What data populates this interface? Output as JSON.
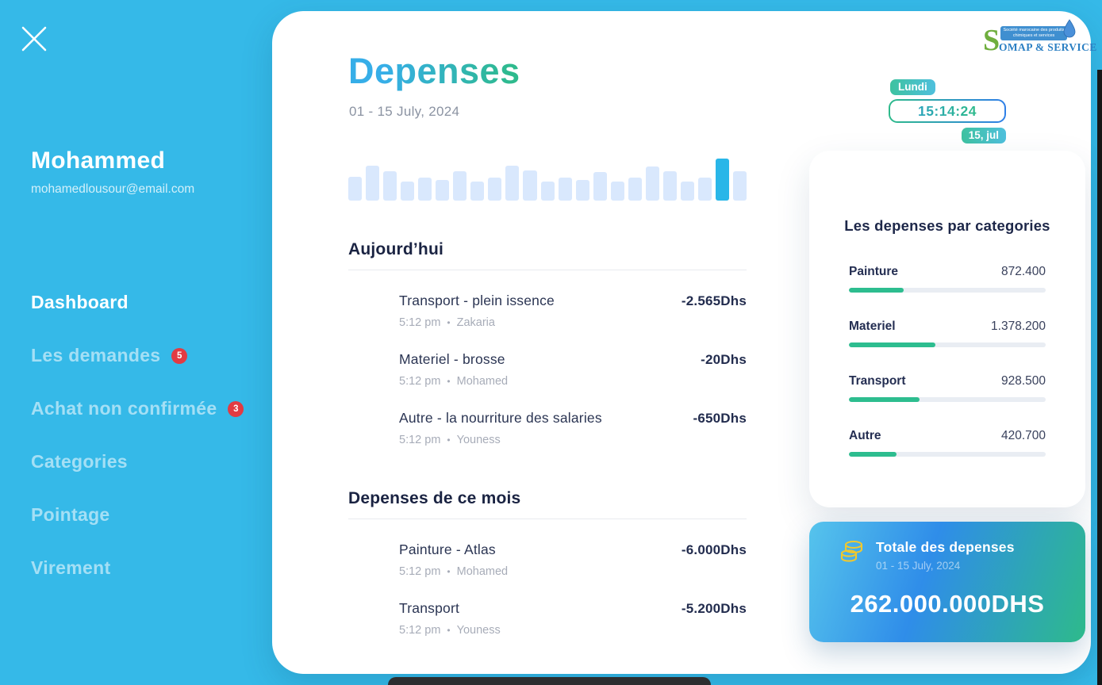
{
  "sidebar": {
    "close_icon": "close-icon",
    "user": {
      "name": "Mohammed",
      "email": "mohamedlousour@email.com"
    },
    "items": [
      {
        "label": "Dashboard",
        "active": true
      },
      {
        "label": "Les demandes",
        "badge": "5"
      },
      {
        "label": "Achat non confirmée",
        "badge": "3"
      },
      {
        "label": "Categories"
      },
      {
        "label": "Pointage"
      },
      {
        "label": "Virement"
      }
    ]
  },
  "header": {
    "title": "Depenses",
    "date_range": "01 - 15 July, 2024",
    "logo": {
      "brand_s": "S",
      "brand_rest": "OMAP & SERVICE",
      "tagline": "Société marocaine des produits chimiques et services",
      "drop_icon": "water-drop-icon"
    },
    "clock": {
      "day": "Lundi",
      "time": "15:14:24",
      "date": "15, jul"
    }
  },
  "chart_data": {
    "type": "bar",
    "title": "",
    "xlabel": "",
    "ylabel": "",
    "values": [
      56,
      83,
      70,
      45,
      55,
      49,
      70,
      45,
      55,
      83,
      72,
      45,
      55,
      49,
      68,
      45,
      55,
      81,
      70,
      45,
      55,
      100,
      70
    ],
    "ylim": [
      0,
      100
    ],
    "highlight_index": 21,
    "bar_color": "#d9e8fd",
    "highlight_color": "#29b6e8",
    "grid": false,
    "legend": "none",
    "note": "decorative daily-spending sparkline without axes or labels"
  },
  "sections": [
    {
      "title": "Aujourd’hui",
      "rows": [
        {
          "title": "Transport - plein issence",
          "amount": "-2.565Dhs",
          "time": "5:12 pm",
          "person": "Zakaria"
        },
        {
          "title": "Materiel - brosse",
          "amount": "-20Dhs",
          "time": "5:12 pm",
          "person": "Mohamed"
        },
        {
          "title": "Autre - la nourriture des salaries",
          "amount": "-650Dhs",
          "time": "5:12 pm",
          "person": "Youness"
        }
      ]
    },
    {
      "title": "Depenses de ce mois",
      "rows": [
        {
          "title": "Painture - Atlas",
          "amount": "-6.000Dhs",
          "time": "5:12 pm",
          "person": "Mohamed"
        },
        {
          "title": "Transport",
          "amount": "-5.200Dhs",
          "time": "5:12 pm",
          "person": "Youness"
        }
      ]
    }
  ],
  "categories_panel": {
    "title": "Les depenses par categories",
    "items": [
      {
        "label": "Painture",
        "value": "872.400",
        "percent": 28
      },
      {
        "label": "Materiel",
        "value": "1.378.200",
        "percent": 44
      },
      {
        "label": "Transport",
        "value": "928.500",
        "percent": 36
      },
      {
        "label": "Autre",
        "value": "420.700",
        "percent": 24
      }
    ],
    "bar_color": "#2dbd8f",
    "track_color": "#e9edf3"
  },
  "total_card": {
    "icon": "coins-icon",
    "title": "Totale des depenses",
    "date_range": "01 - 15 July, 2024",
    "amount": "262.000.000DHS"
  },
  "theme": {
    "background_blue": "#35b9e8",
    "badge_red": "#e23b43",
    "navy_text": "#1a2342",
    "gray_text": "#8b93a2",
    "green_accent": "#2eba8b",
    "title_gradient": [
      "#36aee8",
      "#2eba8d"
    ],
    "total_gradient": [
      "#56c4ec",
      "#2f8de9",
      "#2eba8b"
    ],
    "coin_yellow": "#f0c82e"
  }
}
